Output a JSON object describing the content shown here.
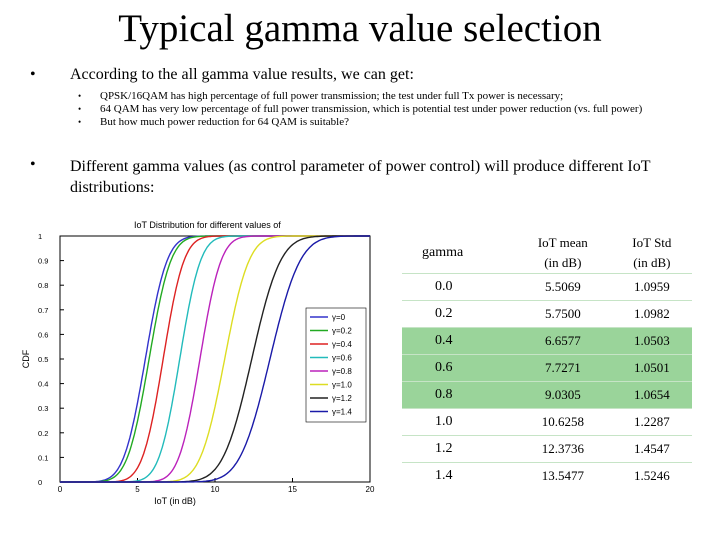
{
  "title": "Typical gamma value selection",
  "bullet1": {
    "text": "According to the all gamma value results, we can get:",
    "subs": [
      "QPSK/16QAM has high percentage of full power transmission; the test under full Tx power is necessary;",
      "64 QAM has very low percentage of full power transmission, which is potential test under power reduction (vs. full power)",
      "But how much power reduction for 64 QAM is suitable?"
    ]
  },
  "bullet2": {
    "text": "Different gamma values (as control parameter of power control) will produce different IoT distributions:"
  },
  "chart_data": {
    "type": "line",
    "title": "IoT Distribution for different values of",
    "xlabel": "IoT (in dB)",
    "ylabel": "CDF",
    "xlim": [
      0,
      20
    ],
    "ylim": [
      0,
      1
    ],
    "xticks": [
      "0",
      "5",
      "10",
      "15",
      "20"
    ],
    "yticks": [
      "0",
      "0.1",
      "0.2",
      "0.3",
      "0.4",
      "0.5",
      "0.6",
      "0.7",
      "0.8",
      "0.9",
      "1"
    ],
    "grid": false,
    "legend_position": "bottom-right",
    "series": [
      {
        "name": "γ=0",
        "mean": 5.5069,
        "std": 1.0959,
        "color": "#3333cc"
      },
      {
        "name": "γ=0.2",
        "mean": 5.75,
        "std": 1.0982,
        "color": "#22aa22"
      },
      {
        "name": "γ=0.4",
        "mean": 6.6577,
        "std": 1.0503,
        "color": "#dd2222"
      },
      {
        "name": "γ=0.6",
        "mean": 7.7271,
        "std": 1.0501,
        "color": "#22bbbb"
      },
      {
        "name": "γ=0.8",
        "mean": 9.0305,
        "std": 1.0654,
        "color": "#bb22bb"
      },
      {
        "name": "γ=1.0",
        "mean": 10.6258,
        "std": 1.2287,
        "color": "#dddd22"
      },
      {
        "name": "γ=1.2",
        "mean": 12.3736,
        "std": 1.4547,
        "color": "#222222"
      },
      {
        "name": "γ=1.4",
        "mean": 13.5477,
        "std": 1.5246,
        "color": "#1a1aa8"
      }
    ]
  },
  "table": {
    "headers": [
      "gamma",
      "IoT mean (in dB)",
      "IoT Std (in dB)"
    ],
    "rows": [
      {
        "gamma": "0.0",
        "mean": "5.5069",
        "std": "1.0959",
        "highlight": false
      },
      {
        "gamma": "0.2",
        "mean": "5.7500",
        "std": "1.0982",
        "highlight": false
      },
      {
        "gamma": "0.4",
        "mean": "6.6577",
        "std": "1.0503",
        "highlight": true
      },
      {
        "gamma": "0.6",
        "mean": "7.7271",
        "std": "1.0501",
        "highlight": true
      },
      {
        "gamma": "0.8",
        "mean": "9.0305",
        "std": "1.0654",
        "highlight": true
      },
      {
        "gamma": "1.0",
        "mean": "10.6258",
        "std": "1.2287",
        "highlight": false
      },
      {
        "gamma": "1.2",
        "mean": "12.3736",
        "std": "1.4547",
        "highlight": false
      },
      {
        "gamma": "1.4",
        "mean": "13.5477",
        "std": "1.5246",
        "highlight": false
      }
    ]
  }
}
